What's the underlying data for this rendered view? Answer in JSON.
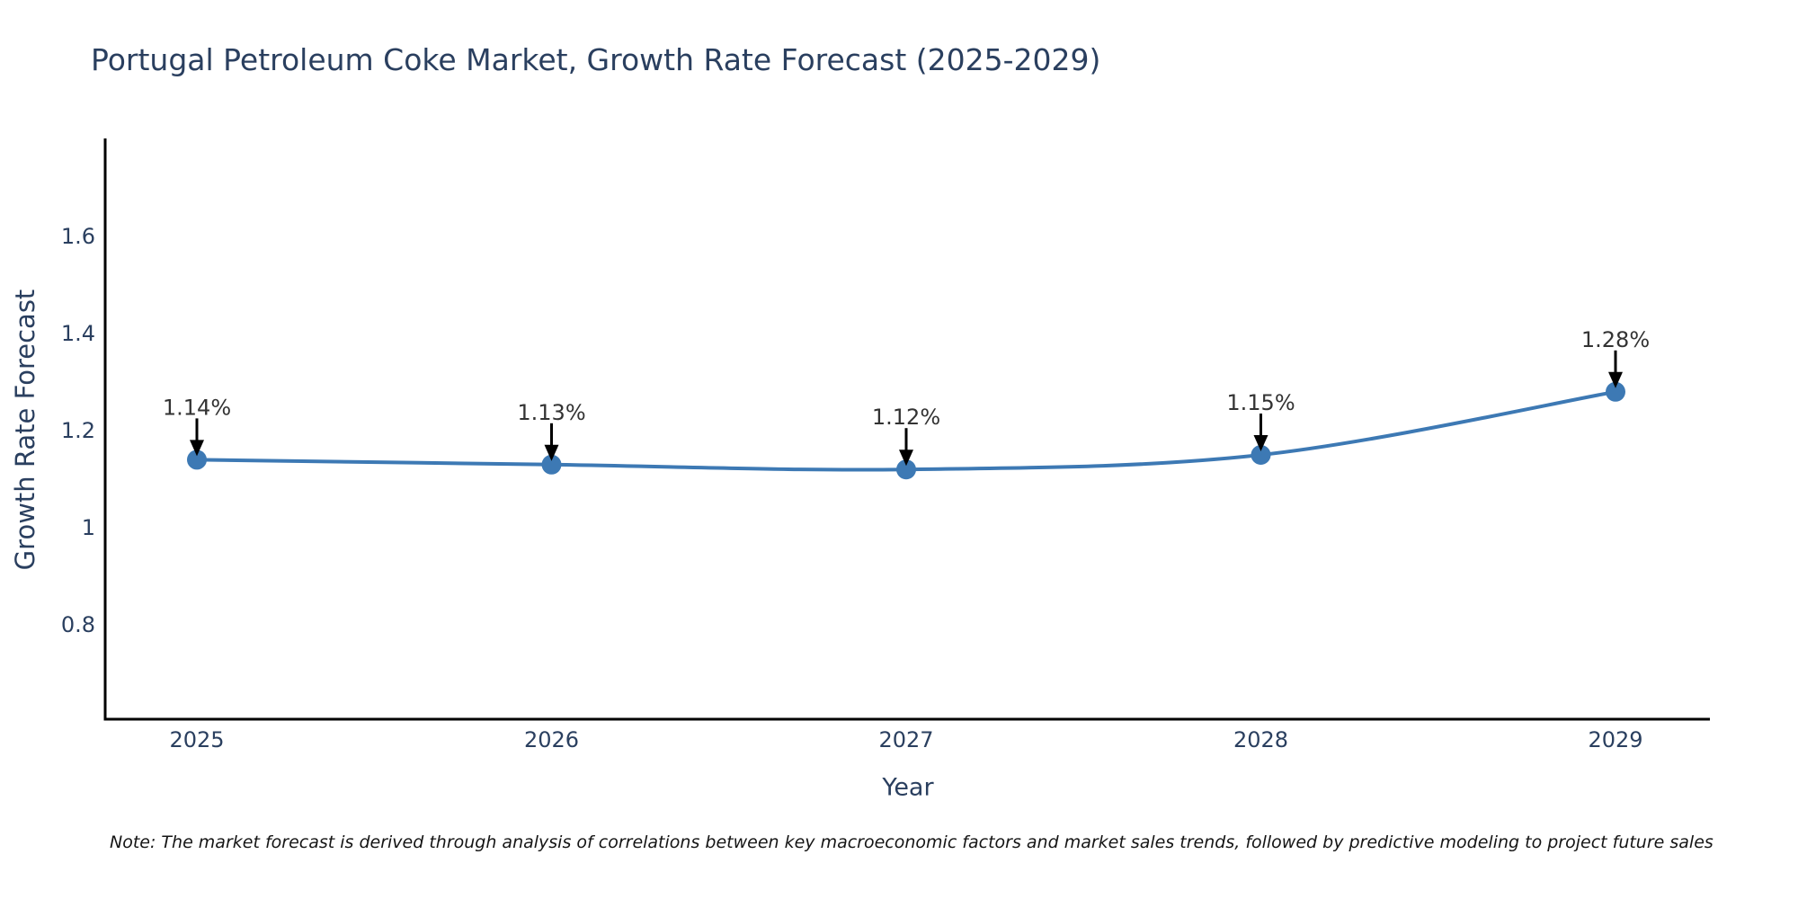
{
  "page": {
    "background": "#ffffff"
  },
  "chart_data": {
    "type": "line",
    "title": "Portugal Petroleum Coke Market, Growth Rate Forecast (2025-2029)",
    "xlabel": "Year",
    "ylabel": "Growth Rate Forecast",
    "categories": [
      "2025",
      "2026",
      "2027",
      "2028",
      "2029"
    ],
    "series": [
      {
        "name": "Growth Rate Forecast",
        "values": [
          1.14,
          1.13,
          1.12,
          1.15,
          1.28
        ]
      }
    ],
    "point_labels": [
      "1.14%",
      "1.13%",
      "1.12%",
      "1.15%",
      "1.28%"
    ],
    "ytick_labels": [
      "1.6",
      "1.4",
      "1.2",
      "1",
      "0.8"
    ],
    "ytick_values": [
      1.6,
      1.4,
      1.2,
      1.0,
      0.8
    ],
    "ylim": [
      0.6,
      1.8
    ],
    "grid": false,
    "legend": "none",
    "marker_style": "circle",
    "annotation_arrows": "black-down-arrows",
    "colors": {
      "line": "#3d79b4",
      "marker": "#3d79b4",
      "axis": "#000000",
      "tick_text": "#2a3f5f",
      "annotation_text": "#333333",
      "arrow": "#000000"
    },
    "note": "Note: The market forecast is derived through analysis of correlations between key macroeconomic factors and market sales trends, followed by predictive modeling to project future sales"
  }
}
